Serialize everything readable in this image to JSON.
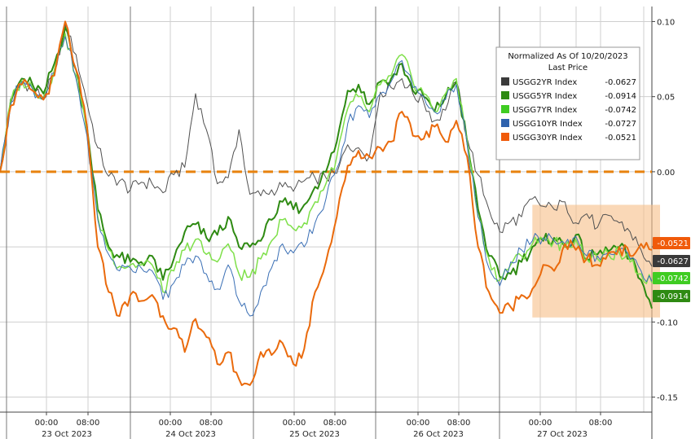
{
  "chart_data": {
    "type": "line",
    "title": "",
    "xlabel": "",
    "ylabel": "",
    "ylim": [
      -0.16,
      0.11
    ],
    "y_ticks": [
      {
        "value": 0.1,
        "label": "0.10"
      },
      {
        "value": 0.05,
        "label": "0.05"
      },
      {
        "value": 0.0,
        "label": "0.00"
      },
      {
        "value": -0.05,
        "label": ""
      },
      {
        "value": -0.1,
        "label": "-0.10"
      },
      {
        "value": -0.15,
        "label": "-0.15"
      }
    ],
    "x_ticks": [
      "00:00",
      "08:00",
      "00:00",
      "08:00",
      "00:00",
      "08:00",
      "00:00",
      "08:00",
      "00:00",
      "08:00"
    ],
    "date_labels": [
      "23 Oct 2023",
      "24 Oct 2023",
      "25 Oct 2023",
      "26 Oct 2023",
      "27 Oct 2023"
    ],
    "grid": true,
    "reference_line": {
      "value": 0.0,
      "color": "#e8820e"
    },
    "highlight_box": {
      "color": "#f7c08a"
    },
    "legend": {
      "position": "top-right",
      "title": "Normalized As Of 10/20/2023",
      "subtitle": "Last Price"
    },
    "x_points": [
      0,
      2,
      4,
      6,
      8,
      10,
      12,
      14,
      16,
      18,
      20,
      22,
      24,
      26,
      28,
      30,
      32,
      34,
      36,
      38,
      40,
      42,
      44,
      46,
      48,
      50,
      52,
      54,
      56,
      58,
      60,
      62,
      64,
      66,
      68,
      70,
      72,
      74,
      76,
      78,
      80,
      82,
      84,
      86,
      88,
      90,
      92,
      94,
      96,
      98,
      100,
      102,
      104,
      106,
      108,
      110,
      112,
      114,
      116,
      118,
      120
    ],
    "series": [
      {
        "name": "USGG2YR Index",
        "last_label": "-0.0627",
        "color": "#505050",
        "tag_color": "#3a3a3a",
        "width": 1,
        "values": [
          0.0,
          0.045,
          0.06,
          0.056,
          0.048,
          0.066,
          0.098,
          0.078,
          0.046,
          0.016,
          -0.003,
          -0.006,
          -0.012,
          -0.007,
          -0.008,
          -0.014,
          -0.002,
          0.003,
          0.052,
          0.028,
          -0.008,
          -0.004,
          0.028,
          -0.015,
          -0.016,
          -0.012,
          -0.01,
          -0.013,
          -0.006,
          -0.004,
          -0.004,
          -0.001,
          0.018,
          0.016,
          0.01,
          0.053,
          0.056,
          0.062,
          0.052,
          0.046,
          0.034,
          0.041,
          0.06,
          0.022,
          -0.002,
          -0.025,
          -0.04,
          -0.033,
          -0.03,
          -0.018,
          -0.023,
          -0.025,
          -0.02,
          -0.034,
          -0.028,
          -0.037,
          -0.029,
          -0.034,
          -0.04,
          -0.052,
          -0.063
        ]
      },
      {
        "name": "USGG5YR Index",
        "last_label": "-0.0914",
        "color": "#2e8a12",
        "tag_color": "#2e8a12",
        "width": 2,
        "values": [
          0.0,
          0.048,
          0.062,
          0.058,
          0.052,
          0.072,
          0.096,
          0.068,
          0.03,
          -0.025,
          -0.05,
          -0.057,
          -0.06,
          -0.06,
          -0.056,
          -0.072,
          -0.058,
          -0.04,
          -0.035,
          -0.044,
          -0.042,
          -0.03,
          -0.05,
          -0.05,
          -0.046,
          -0.032,
          -0.02,
          -0.025,
          -0.022,
          -0.01,
          0.0,
          0.02,
          0.054,
          0.058,
          0.045,
          0.06,
          0.062,
          0.072,
          0.054,
          0.05,
          0.04,
          0.05,
          0.06,
          0.02,
          -0.025,
          -0.056,
          -0.07,
          -0.068,
          -0.06,
          -0.05,
          -0.046,
          -0.044,
          -0.05,
          -0.042,
          -0.058,
          -0.055,
          -0.053,
          -0.05,
          -0.058,
          -0.072,
          -0.091
        ]
      },
      {
        "name": "USGG7YR Index",
        "last_label": "-0.0742",
        "color": "#7fe04a",
        "tag_color": "#3fcc22",
        "width": 1.5,
        "values": [
          0.0,
          0.047,
          0.061,
          0.056,
          0.05,
          0.068,
          0.092,
          0.064,
          0.026,
          -0.03,
          -0.052,
          -0.063,
          -0.062,
          -0.062,
          -0.062,
          -0.08,
          -0.066,
          -0.052,
          -0.045,
          -0.055,
          -0.06,
          -0.048,
          -0.068,
          -0.07,
          -0.058,
          -0.046,
          -0.032,
          -0.038,
          -0.034,
          -0.02,
          -0.008,
          0.01,
          0.042,
          0.05,
          0.04,
          0.058,
          0.064,
          0.078,
          0.06,
          0.052,
          0.04,
          0.052,
          0.062,
          0.02,
          -0.03,
          -0.058,
          -0.072,
          -0.062,
          -0.056,
          -0.048,
          -0.045,
          -0.046,
          -0.05,
          -0.045,
          -0.058,
          -0.058,
          -0.055,
          -0.054,
          -0.06,
          -0.068,
          -0.074
        ]
      },
      {
        "name": "USGG10YR Index",
        "last_label": "-0.0727",
        "color": "#3a6fb5",
        "tag_color": "#2f62ad",
        "width": 1,
        "values": [
          0.0,
          0.046,
          0.06,
          0.055,
          0.049,
          0.066,
          0.09,
          0.062,
          0.024,
          -0.032,
          -0.055,
          -0.066,
          -0.064,
          -0.064,
          -0.066,
          -0.085,
          -0.074,
          -0.062,
          -0.056,
          -0.068,
          -0.078,
          -0.062,
          -0.086,
          -0.096,
          -0.08,
          -0.064,
          -0.048,
          -0.054,
          -0.05,
          -0.034,
          -0.018,
          0.002,
          0.032,
          0.044,
          0.036,
          0.052,
          0.06,
          0.074,
          0.056,
          0.05,
          0.04,
          0.048,
          0.058,
          0.018,
          -0.03,
          -0.064,
          -0.076,
          -0.06,
          -0.052,
          -0.046,
          -0.044,
          -0.046,
          -0.048,
          -0.043,
          -0.056,
          -0.056,
          -0.054,
          -0.052,
          -0.058,
          -0.066,
          -0.073
        ]
      },
      {
        "name": "USGG30YR Index",
        "last_label": "-0.0521",
        "color": "#ea6a0c",
        "tag_color": "#f05a0a",
        "width": 2,
        "values": [
          0.0,
          0.044,
          0.058,
          0.054,
          0.048,
          0.064,
          0.1,
          0.068,
          0.03,
          -0.05,
          -0.08,
          -0.096,
          -0.082,
          -0.086,
          -0.082,
          -0.096,
          -0.104,
          -0.12,
          -0.098,
          -0.11,
          -0.128,
          -0.12,
          -0.138,
          -0.142,
          -0.12,
          -0.122,
          -0.114,
          -0.128,
          -0.118,
          -0.08,
          -0.06,
          -0.03,
          0.004,
          0.014,
          0.01,
          0.016,
          0.02,
          0.04,
          0.024,
          0.022,
          0.03,
          0.02,
          0.034,
          0.01,
          -0.05,
          -0.08,
          -0.094,
          -0.09,
          -0.082,
          -0.078,
          -0.062,
          -0.066,
          -0.048,
          -0.052,
          -0.058,
          -0.062,
          -0.054,
          -0.05,
          -0.056,
          -0.048,
          -0.052
        ]
      }
    ]
  }
}
